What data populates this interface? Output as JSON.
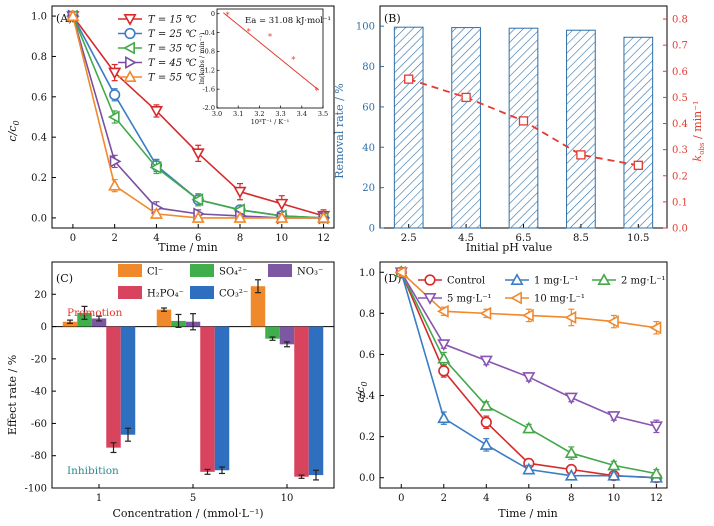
{
  "chart_data": [
    {
      "panel": "(A)",
      "type": "line",
      "xlabel": "Time / min",
      "ylabel": "c/c0",
      "x": [
        0,
        2,
        4,
        6,
        8,
        10,
        12
      ],
      "xlim": [
        -1,
        12.5
      ],
      "ylim": [
        -0.05,
        1.05
      ],
      "xticks": [
        "0",
        "2",
        "4",
        "6",
        "8",
        "10",
        "12"
      ],
      "yticks": [
        "0.0",
        "0.2",
        "0.4",
        "0.6",
        "0.8",
        "1.0"
      ],
      "legend_placement": "top-left",
      "series": [
        {
          "name": "T = 15 ℃",
          "marker": "triangle-down",
          "color": "#d62a2a",
          "values": [
            1.0,
            0.72,
            0.53,
            0.32,
            0.13,
            0.07,
            0.01
          ],
          "errors": [
            0.02,
            0.04,
            0.03,
            0.04,
            0.04,
            0.04,
            0.03
          ]
        },
        {
          "name": "T = 25 ℃",
          "marker": "circle",
          "color": "#3b7dc4",
          "values": [
            1.0,
            0.61,
            0.26,
            0.09,
            0.04,
            0.01,
            0.0
          ],
          "errors": [
            0.02,
            0.03,
            0.03,
            0.02,
            0.02,
            0.01,
            0.01
          ]
        },
        {
          "name": "T = 35 ℃",
          "marker": "triangle-left",
          "color": "#43a84a",
          "values": [
            1.0,
            0.5,
            0.25,
            0.09,
            0.04,
            0.01,
            0.0
          ],
          "errors": [
            0.02,
            0.03,
            0.03,
            0.03,
            0.02,
            0.01,
            0.01
          ]
        },
        {
          "name": "T = 45 ℃",
          "marker": "triangle-right",
          "color": "#7a4fa0",
          "values": [
            1.0,
            0.28,
            0.05,
            0.02,
            0.01,
            0.0,
            0.0
          ],
          "errors": [
            0.02,
            0.03,
            0.03,
            0.02,
            0.01,
            0.01,
            0.01
          ]
        },
        {
          "name": "T = 55 ℃",
          "marker": "triangle-up",
          "color": "#f0892c",
          "values": [
            1.0,
            0.16,
            0.02,
            0.0,
            0.0,
            0.0,
            0.0
          ],
          "errors": [
            0.02,
            0.03,
            0.02,
            0.01,
            0.01,
            0.01,
            0.01
          ]
        }
      ],
      "inset": {
        "annotation": "Ea = 31.08 kJ·mol⁻¹",
        "xlabel": "10³T⁻¹ / K⁻¹",
        "ylabel": "ln(kobs / min⁻¹)",
        "xticks": [
          "3.0",
          "3.1",
          "3.2",
          "3.3",
          "3.4",
          "3.5"
        ],
        "yticks": [
          "0",
          "-0.4",
          "-0.8",
          "-1.2",
          "-1.6",
          "-2.0"
        ],
        "xlim": [
          3.0,
          3.5
        ],
        "ylim": [
          -2.0,
          0.1
        ],
        "points": [
          {
            "x": 3.05,
            "y": -0.03
          },
          {
            "x": 3.15,
            "y": -0.38
          },
          {
            "x": 3.25,
            "y": -0.48
          },
          {
            "x": 3.36,
            "y": -0.97
          },
          {
            "x": 3.47,
            "y": -1.63
          }
        ],
        "fit": [
          {
            "x": 3.03,
            "y": 0.02
          },
          {
            "x": 3.48,
            "y": -1.62
          }
        ]
      }
    },
    {
      "panel": "(B)",
      "type": "bar",
      "xlabel": "Initial pH value",
      "ylabel": "Removal rate / %",
      "y2label": "kobs / min⁻¹",
      "categories": [
        "2.5",
        "4.5",
        "6.5",
        "8.5",
        "10.5"
      ],
      "ylim": [
        0,
        110
      ],
      "yticks": [
        "0",
        "20",
        "40",
        "60",
        "80",
        "100"
      ],
      "y2lim": [
        0,
        0.85
      ],
      "y2ticks": [
        "0.0",
        "0.1",
        "0.2",
        "0.3",
        "0.4",
        "0.5",
        "0.6",
        "0.7",
        "0.8"
      ],
      "bars": [
        99.5,
        99.3,
        99.0,
        98.0,
        94.5
      ],
      "kobs": [
        0.57,
        0.5,
        0.41,
        0.28,
        0.24
      ],
      "bar_color": "#2e6fa8",
      "line_color": "#e23b30"
    },
    {
      "panel": "(C)",
      "type": "bar",
      "xlabel": "Concentration / (mmol·L⁻¹)",
      "ylabel": "Effect rate / %",
      "categories": [
        "1",
        "5",
        "10"
      ],
      "ylim": [
        -100,
        40
      ],
      "yticks": [
        "20",
        "0",
        "-20",
        "-40",
        "-60",
        "-80",
        "-100"
      ],
      "annotations": [
        "Promotion",
        "Inhibition"
      ],
      "legend_placement": "top",
      "series": [
        {
          "name": "Cl⁻",
          "color": "#f0892c",
          "values": [
            3.0,
            10.5,
            25.0
          ],
          "errors": [
            1.0,
            1.0,
            4.0
          ]
        },
        {
          "name": "SO₄²⁻",
          "color": "#3fae4b",
          "values": [
            8.5,
            3.5,
            -7.5
          ],
          "errors": [
            4.0,
            4.0,
            1.0
          ]
        },
        {
          "name": "NO₃⁻",
          "color": "#7e57a2",
          "values": [
            5.0,
            3.0,
            -11.0
          ],
          "errors": [
            1.5,
            5.0,
            1.5
          ]
        },
        {
          "name": "H₂PO₄⁻",
          "color": "#d8445d",
          "values": [
            -75.0,
            -90.0,
            -93.0
          ],
          "errors": [
            3.0,
            1.5,
            1.0
          ]
        },
        {
          "name": "CO₃²⁻",
          "color": "#2f6fbf",
          "values": [
            -67.0,
            -89.0,
            -92.0
          ],
          "errors": [
            4.0,
            2.0,
            3.0
          ]
        }
      ]
    },
    {
      "panel": "(D)",
      "type": "line",
      "xlabel": "Time / min",
      "ylabel": "c/c0",
      "x": [
        0,
        2,
        4,
        6,
        8,
        10,
        12
      ],
      "xlim": [
        -1,
        12.5
      ],
      "ylim": [
        -0.05,
        1.05
      ],
      "xticks": [
        "0",
        "2",
        "4",
        "6",
        "8",
        "10",
        "12"
      ],
      "yticks": [
        "0.0",
        "0.2",
        "0.4",
        "0.6",
        "0.8",
        "1.0"
      ],
      "legend_placement": "top",
      "series": [
        {
          "name": "Control",
          "marker": "circle",
          "color": "#d62a2a",
          "values": [
            1.0,
            0.52,
            0.27,
            0.07,
            0.04,
            0.01,
            0.0
          ],
          "errors": [
            0.02,
            0.03,
            0.03,
            0.02,
            0.02,
            0.02,
            0.01
          ]
        },
        {
          "name": "1 mg·L⁻¹",
          "marker": "triangle-up",
          "color": "#3b7dc4",
          "values": [
            1.0,
            0.29,
            0.16,
            0.04,
            0.01,
            0.01,
            0.0
          ],
          "errors": [
            0.02,
            0.03,
            0.03,
            0.02,
            0.01,
            0.01,
            0.01
          ]
        },
        {
          "name": "2 mg·L⁻¹",
          "marker": "triangle-up",
          "color": "#43a84a",
          "values": [
            1.0,
            0.58,
            0.35,
            0.24,
            0.12,
            0.06,
            0.02
          ],
          "errors": [
            0.02,
            0.03,
            0.02,
            0.02,
            0.03,
            0.02,
            0.02
          ]
        },
        {
          "name": "5 mg·L⁻¹",
          "marker": "triangle-down",
          "color": "#8a55b0",
          "values": [
            1.0,
            0.65,
            0.57,
            0.49,
            0.39,
            0.3,
            0.25
          ],
          "errors": [
            0.02,
            0.02,
            0.02,
            0.02,
            0.02,
            0.02,
            0.03
          ]
        },
        {
          "name": "10 mg·L⁻¹",
          "marker": "triangle-left",
          "color": "#f0892c",
          "values": [
            1.0,
            0.81,
            0.8,
            0.79,
            0.78,
            0.76,
            0.73
          ],
          "errors": [
            0.02,
            0.02,
            0.02,
            0.03,
            0.04,
            0.03,
            0.03
          ]
        }
      ]
    }
  ]
}
